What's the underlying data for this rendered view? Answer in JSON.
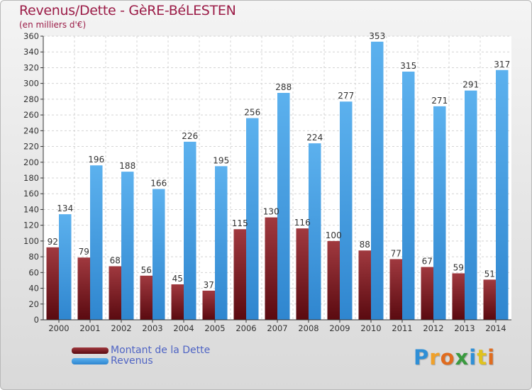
{
  "header": {
    "title": "Revenus/Dette - GèRE-BéLESTEN",
    "subtitle": "(en milliers d'€)"
  },
  "chart_data": {
    "type": "bar",
    "title": "Revenus/Dette - GèRE-BéLESTEN",
    "ylabel": "(en milliers d'€)",
    "categories": [
      "2000",
      "2001",
      "2002",
      "2003",
      "2004",
      "2005",
      "2006",
      "2007",
      "2008",
      "2009",
      "2010",
      "2011",
      "2012",
      "2013",
      "2014"
    ],
    "series": [
      {
        "name": "Montant de la Dette",
        "color": "#7a1419",
        "values": [
          92,
          79,
          68,
          56,
          45,
          37,
          115,
          130,
          116,
          100,
          88,
          77,
          67,
          59,
          51
        ]
      },
      {
        "name": "Revenus",
        "color": "#4ea5e6",
        "values": [
          134,
          196,
          188,
          166,
          226,
          195,
          256,
          288,
          224,
          277,
          353,
          315,
          271,
          291,
          317
        ]
      }
    ],
    "ylim": [
      0,
      360
    ],
    "ytick_step": 20,
    "grid": true,
    "legend": "bottom-left"
  },
  "legend": {
    "items": [
      {
        "label": "Montant de la Dette",
        "color": "#7a1419"
      },
      {
        "label": "Revenus",
        "color": "#4ea5e6"
      }
    ]
  },
  "brand": {
    "letters": [
      "P",
      "r",
      "o",
      "x",
      "i",
      "t",
      "i"
    ],
    "colors": [
      "#2f8fd6",
      "#f0a12a",
      "#e06c1f",
      "#3a9a3f",
      "#2f8fd6",
      "#e0c21f",
      "#e06c1f"
    ]
  }
}
